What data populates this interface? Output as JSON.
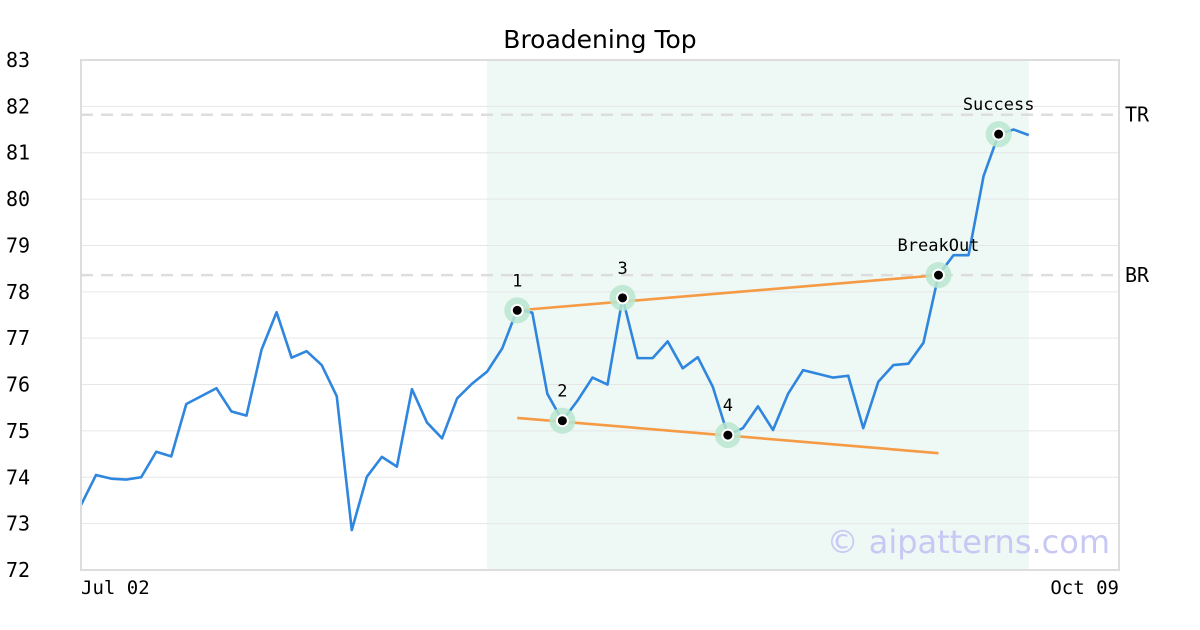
{
  "chart_data": {
    "type": "line",
    "title": "Broadening Top",
    "watermark": "© aipatterns.com",
    "ylim": [
      72,
      83
    ],
    "yticks": [
      72,
      73,
      74,
      75,
      76,
      77,
      78,
      79,
      80,
      81,
      82,
      83
    ],
    "xlim": [
      0,
      69
    ],
    "x_tick_labels": [
      {
        "x": 0,
        "label": "Jul 02"
      },
      {
        "x": 69,
        "label": "Oct 09"
      }
    ],
    "grid": "horizontal",
    "colors": {
      "price": "#2f86de",
      "trendline": "#f59a45",
      "highlight": "#e3f4ec",
      "marker_ring": "#b8e6cf",
      "level_line": "#dddddd",
      "frame": "#dddddd"
    },
    "series": [
      {
        "values": [
          73.4,
          74.05,
          73.97,
          73.95,
          74.0,
          74.55,
          74.45,
          75.58,
          75.75,
          75.92,
          75.42,
          75.33,
          76.75,
          77.56,
          76.58,
          76.72,
          76.42,
          75.75,
          72.86,
          74.01,
          74.44,
          74.23,
          75.9,
          75.18,
          74.84,
          75.7,
          76.02,
          76.28,
          76.78,
          77.62,
          77.55,
          75.8,
          75.22,
          75.65,
          76.15,
          76.0,
          77.87,
          76.57,
          76.57,
          76.93,
          76.35,
          76.59,
          75.95,
          74.91,
          75.06,
          75.53,
          75.02,
          75.8,
          76.31,
          76.23,
          76.15,
          76.19,
          75.06,
          76.06,
          76.42,
          76.45,
          76.9,
          78.36,
          78.79,
          78.79,
          80.5,
          81.4,
          81.5,
          81.38
        ]
      }
    ],
    "highlight_region": {
      "x_start": 27,
      "x_end": 63
    },
    "levels": [
      {
        "label": "TR",
        "y": 81.82
      },
      {
        "label": "BR",
        "y": 78.36
      }
    ],
    "trendlines": [
      {
        "x1": 29,
        "y1": 77.6,
        "x2": 57,
        "y2": 78.36
      },
      {
        "x1": 29,
        "y1": 75.28,
        "x2": 57,
        "y2": 74.52
      }
    ],
    "annotations": [
      {
        "label": "1",
        "x": 29,
        "y": 77.6
      },
      {
        "label": "2",
        "x": 32,
        "y": 75.22
      },
      {
        "label": "3",
        "x": 36,
        "y": 77.87
      },
      {
        "label": "4",
        "x": 43,
        "y": 74.91
      },
      {
        "label": "BreakOut",
        "x": 57,
        "y": 78.36
      },
      {
        "label": "Success",
        "x": 61,
        "y": 81.4
      }
    ]
  }
}
